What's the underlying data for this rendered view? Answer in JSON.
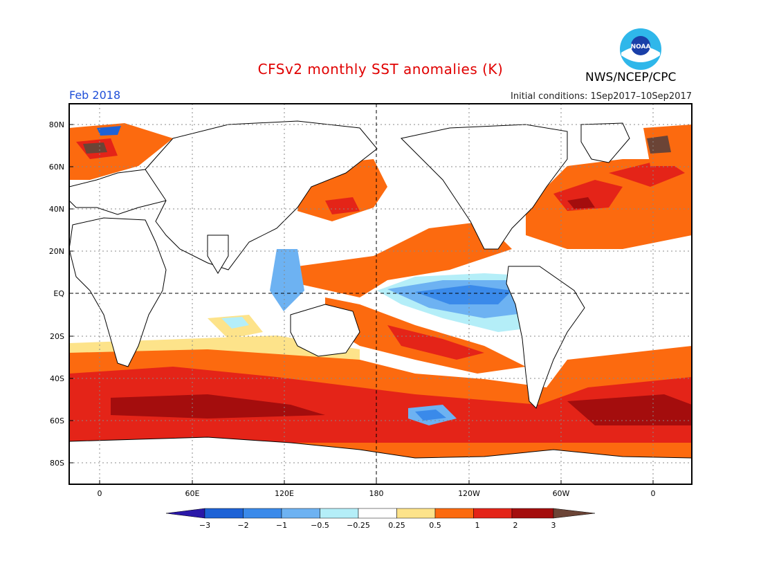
{
  "title": "CFSv2 monthly SST anomalies (K)",
  "agency": "NWS/NCEP/CPC",
  "logo_text": "NOAA",
  "month": "Feb 2018",
  "initial_conditions": "Initial conditions: 1Sep2017–10Sep2017",
  "map": {
    "lat_labels": [
      "80N",
      "60N",
      "40N",
      "20N",
      "EQ",
      "20S",
      "40S",
      "60S",
      "80S"
    ],
    "lon_labels": [
      "0",
      "60E",
      "120E",
      "180",
      "120W",
      "60W",
      "0"
    ]
  },
  "colorbar": {
    "labels": [
      "−3",
      "−2",
      "−1",
      "−0.5",
      "−0.25",
      "0.25",
      "0.5",
      "1",
      "2",
      "3"
    ],
    "colors": [
      "#2a18a8",
      "#1d62d6",
      "#3a8aea",
      "#6db2f2",
      "#b4eef8",
      "#ffffff",
      "#fde38a",
      "#fc6a0f",
      "#e42418",
      "#a40d0d",
      "#6b4436"
    ]
  },
  "colors": {
    "title": "#e00000",
    "month": "#1f4fd8",
    "land": "#ffffff",
    "ocean_background": "#ffffff"
  }
}
